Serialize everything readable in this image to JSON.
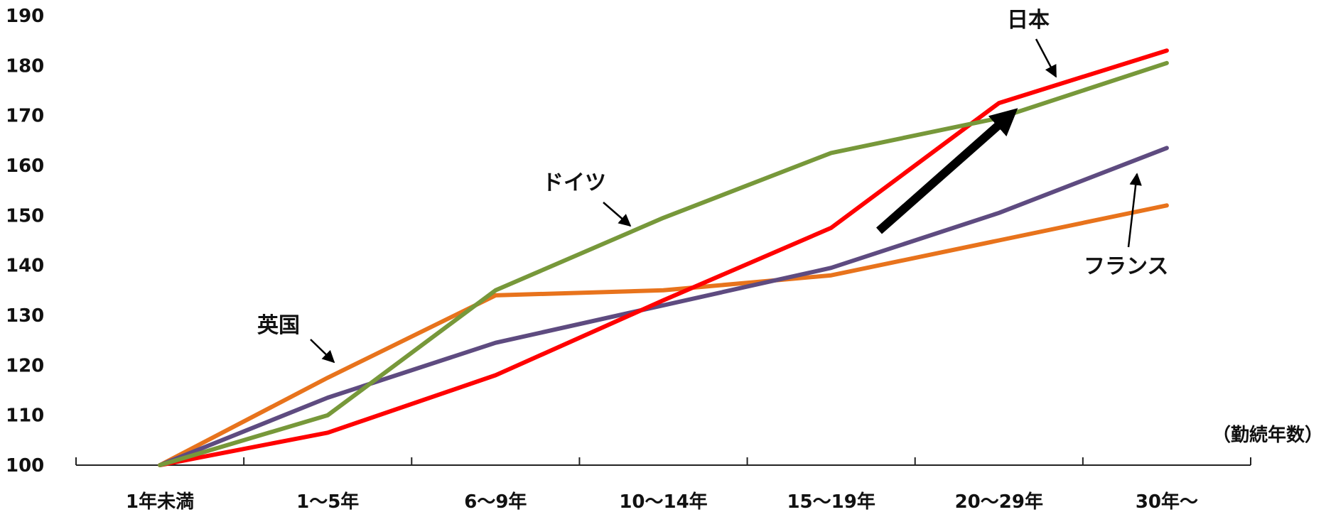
{
  "chart_data": {
    "type": "line",
    "x_unit_label": "（勤続年数）",
    "categories": [
      "1年未満",
      "1～5年",
      "6～9年",
      "10～14年",
      "15～19年",
      "20～29年",
      "30年～"
    ],
    "ylim": [
      100,
      190
    ],
    "yticks": [
      100,
      110,
      120,
      130,
      140,
      150,
      160,
      170,
      180,
      190
    ],
    "grid": false,
    "series": [
      {
        "name": "日本",
        "color": "#ff0000",
        "values": [
          100,
          106.5,
          118,
          133,
          147.5,
          172.5,
          183
        ]
      },
      {
        "name": "ドイツ",
        "color": "#77983a",
        "values": [
          100,
          110,
          135,
          149.5,
          162.5,
          169.5,
          180.5
        ]
      },
      {
        "name": "英国",
        "color": "#e8731c",
        "values": [
          100,
          117.5,
          134,
          135,
          138,
          145,
          152
        ]
      },
      {
        "name": "フランス",
        "color": "#5e4b80",
        "values": [
          100,
          113.5,
          124.5,
          132,
          139.5,
          150.5,
          163.5
        ]
      }
    ]
  }
}
